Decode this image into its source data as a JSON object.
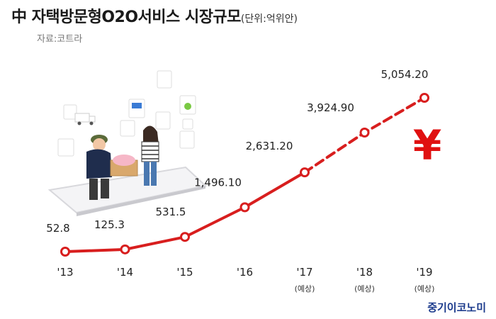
{
  "header": {
    "title": "中 자택방문형O2O서비스 시장규모",
    "unit": "(단위:억위안)",
    "source": "자료:코트라"
  },
  "brand": "중기이코노미",
  "colors": {
    "line": "#d81e1e",
    "yuan": "#e01010",
    "text": "#222222",
    "brand": "#1b3a8c"
  },
  "decor": {
    "yuan_symbol": "¥",
    "illustration": "o2o-delivery-illustration-icon"
  },
  "chart_data": {
    "type": "line",
    "categories": [
      "'13",
      "'14",
      "'15",
      "'16",
      "'17",
      "'18",
      "'19"
    ],
    "sublabels": [
      "",
      "",
      "",
      "",
      "(예상)",
      "(예상)",
      "(예상)"
    ],
    "series": [
      {
        "values": [
          52.8,
          125.3,
          531.5,
          1496.1,
          2631.2,
          3924.9,
          5054.2
        ],
        "labels": [
          "52.8",
          "125.3",
          "531.5",
          "1,496.10",
          "2,631.20",
          "3,924.90",
          "5,054.20"
        ],
        "forecast_from_index": 4
      }
    ],
    "title": "中 자택방문형O2O서비스 시장규모",
    "xlabel": "",
    "ylabel": "",
    "grid": false
  }
}
